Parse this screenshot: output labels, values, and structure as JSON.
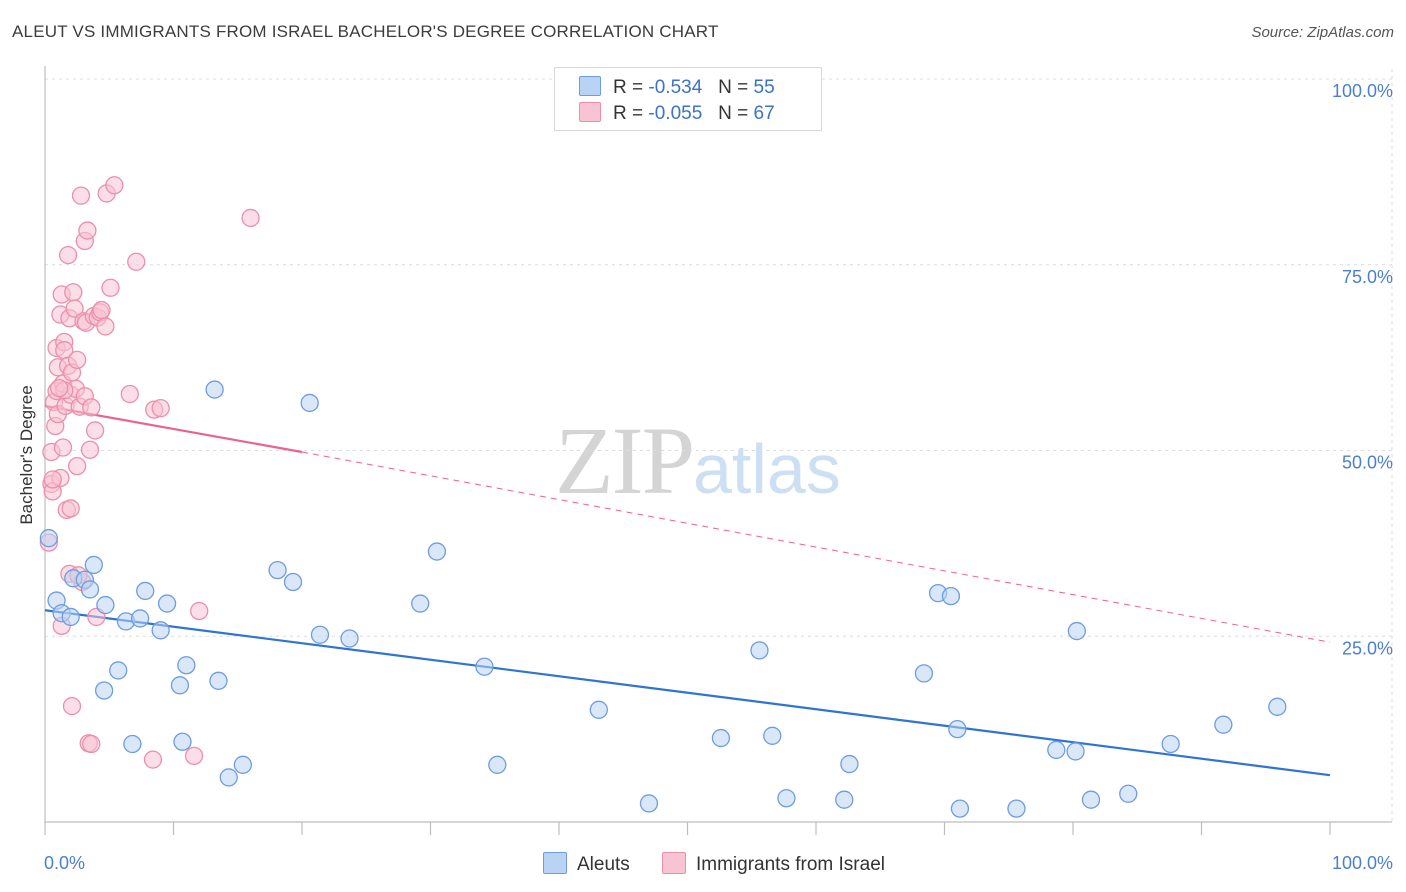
{
  "title": "ALEUT VS IMMIGRANTS FROM ISRAEL BACHELOR'S DEGREE CORRELATION CHART",
  "source": "Source: ZipAtlas.com",
  "watermark": {
    "zip": "ZIP",
    "atlas": "atlas"
  },
  "legend_top": [
    {
      "r_label": "R =",
      "r_value": "-0.534",
      "n_label": "N =",
      "n_value": "55"
    },
    {
      "r_label": "R =",
      "r_value": "-0.055",
      "n_label": "N =",
      "n_value": "67"
    }
  ],
  "legend_bottom": [
    {
      "label": "Aleuts"
    },
    {
      "label": "Immigrants from Israel"
    }
  ],
  "colors": {
    "aleut_fill": "#b9d3f4",
    "aleut_stroke": "#6d9de0",
    "aleut_line": "#2f74d0",
    "israel_fill": "#f8c3d3",
    "israel_stroke": "#ec8fab",
    "israel_line": "#e8648e",
    "grid": "#dcdcdc",
    "tick_text": "#4a7fcf"
  },
  "chart_data": {
    "type": "scatter",
    "title": "ALEUT VS IMMIGRANTS FROM ISRAEL BACHELOR'S DEGREE CORRELATION CHART",
    "xlabel": "",
    "ylabel": "Bachelor's Degree",
    "xlim": [
      0,
      100
    ],
    "ylim": [
      0,
      100
    ],
    "x_tick_labels": [
      "0.0%",
      "100.0%"
    ],
    "y_ticks": [
      25,
      50,
      75,
      100
    ],
    "y_tick_labels": [
      "25.0%",
      "50.0%",
      "75.0%",
      "100.0%"
    ],
    "grid": true,
    "series": [
      {
        "name": "Aleuts",
        "r": -0.534,
        "n": 55,
        "trend": {
          "x": [
            0,
            100
          ],
          "y": [
            28.5,
            6.3
          ],
          "dashed_to": null
        },
        "points": [
          [
            0.3,
            38.2
          ],
          [
            0.9,
            29.8
          ],
          [
            1.3,
            28.1
          ],
          [
            2.0,
            27.6
          ],
          [
            2.2,
            32.8
          ],
          [
            3.1,
            32.6
          ],
          [
            3.5,
            31.3
          ],
          [
            3.8,
            34.6
          ],
          [
            4.6,
            17.7
          ],
          [
            4.7,
            29.2
          ],
          [
            5.7,
            20.4
          ],
          [
            6.3,
            27.0
          ],
          [
            6.8,
            10.5
          ],
          [
            7.4,
            27.4
          ],
          [
            7.8,
            31.1
          ],
          [
            9.0,
            25.8
          ],
          [
            9.5,
            29.4
          ],
          [
            10.5,
            18.4
          ],
          [
            10.7,
            10.8
          ],
          [
            11.0,
            21.1
          ],
          [
            13.5,
            19.0
          ],
          [
            14.3,
            6.0
          ],
          [
            15.4,
            7.7
          ],
          [
            13.2,
            58.2
          ],
          [
            18.1,
            33.9
          ],
          [
            19.3,
            32.3
          ],
          [
            20.6,
            56.4
          ],
          [
            21.4,
            25.2
          ],
          [
            23.7,
            24.7
          ],
          [
            29.2,
            29.4
          ],
          [
            30.5,
            36.4
          ],
          [
            34.2,
            20.9
          ],
          [
            35.2,
            7.7
          ],
          [
            43.1,
            15.1
          ],
          [
            47.0,
            2.5
          ],
          [
            52.6,
            11.3
          ],
          [
            55.6,
            23.1
          ],
          [
            56.6,
            11.6
          ],
          [
            57.7,
            3.2
          ],
          [
            62.2,
            3.0
          ],
          [
            62.6,
            7.8
          ],
          [
            68.4,
            20.0
          ],
          [
            69.5,
            30.8
          ],
          [
            70.5,
            30.4
          ],
          [
            71.0,
            12.5
          ],
          [
            71.2,
            1.8
          ],
          [
            75.6,
            1.8
          ],
          [
            78.7,
            9.7
          ],
          [
            80.2,
            9.5
          ],
          [
            80.3,
            25.7
          ],
          [
            81.4,
            3.0
          ],
          [
            84.3,
            3.8
          ],
          [
            87.6,
            10.5
          ],
          [
            91.7,
            13.1
          ],
          [
            95.9,
            15.5
          ]
        ]
      },
      {
        "name": "Immigrants from Israel",
        "r": -0.055,
        "n": 67,
        "trend": {
          "x": [
            0,
            20
          ],
          "y": [
            56.0,
            49.8
          ],
          "dashed_to": {
            "x": 100,
            "y": 24.2
          }
        },
        "points": [
          [
            0.3,
            37.6
          ],
          [
            0.5,
            45.5
          ],
          [
            0.6,
            44.5
          ],
          [
            0.5,
            49.8
          ],
          [
            0.7,
            56.5
          ],
          [
            0.9,
            58.0
          ],
          [
            0.8,
            53.3
          ],
          [
            0.9,
            63.8
          ],
          [
            1.0,
            54.9
          ],
          [
            1.0,
            61.2
          ],
          [
            1.2,
            68.3
          ],
          [
            1.2,
            46.3
          ],
          [
            1.3,
            71.0
          ],
          [
            1.3,
            26.4
          ],
          [
            1.4,
            59.0
          ],
          [
            1.4,
            50.4
          ],
          [
            1.5,
            64.6
          ],
          [
            1.5,
            63.5
          ],
          [
            1.6,
            56.0
          ],
          [
            1.7,
            42.0
          ],
          [
            1.8,
            61.4
          ],
          [
            1.9,
            33.4
          ],
          [
            1.8,
            76.3
          ],
          [
            1.9,
            67.8
          ],
          [
            2.0,
            57.5
          ],
          [
            2.0,
            42.2
          ],
          [
            2.1,
            60.5
          ],
          [
            2.1,
            15.6
          ],
          [
            2.2,
            71.3
          ],
          [
            2.3,
            69.1
          ],
          [
            2.4,
            58.3
          ],
          [
            2.5,
            62.2
          ],
          [
            2.5,
            47.9
          ],
          [
            2.7,
            55.9
          ],
          [
            2.8,
            84.3
          ],
          [
            2.9,
            32.3
          ],
          [
            3.0,
            67.4
          ],
          [
            3.1,
            57.3
          ],
          [
            3.1,
            78.2
          ],
          [
            3.2,
            67.2
          ],
          [
            3.3,
            79.6
          ],
          [
            3.4,
            10.6
          ],
          [
            3.5,
            50.1
          ],
          [
            3.6,
            55.8
          ],
          [
            3.6,
            10.5
          ],
          [
            3.8,
            68.1
          ],
          [
            3.9,
            52.7
          ],
          [
            4.0,
            27.6
          ],
          [
            4.1,
            67.9
          ],
          [
            4.3,
            68.6
          ],
          [
            4.4,
            68.9
          ],
          [
            4.7,
            66.7
          ],
          [
            4.8,
            84.6
          ],
          [
            5.1,
            71.9
          ],
          [
            5.4,
            85.7
          ],
          [
            6.6,
            57.6
          ],
          [
            7.1,
            75.4
          ],
          [
            8.4,
            8.4
          ],
          [
            8.5,
            55.5
          ],
          [
            9.0,
            55.7
          ],
          [
            11.6,
            8.9
          ],
          [
            12.0,
            28.4
          ],
          [
            16.0,
            81.3
          ],
          [
            1.5,
            58.1
          ],
          [
            0.6,
            46.1
          ],
          [
            2.6,
            33.2
          ],
          [
            1.1,
            58.4
          ]
        ]
      }
    ]
  }
}
